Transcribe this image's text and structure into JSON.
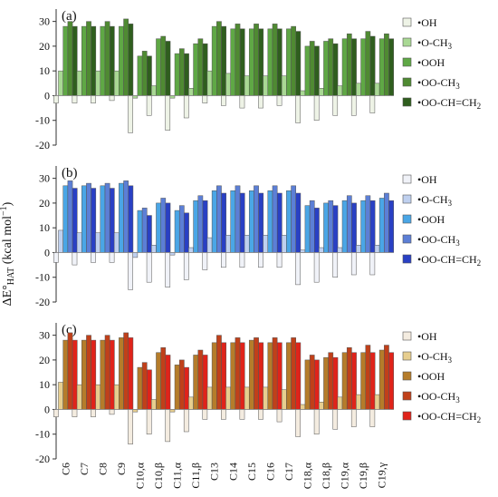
{
  "chart_data": {
    "type": "bar",
    "ylabel": "ΔE°HAT (kcal mol⁻¹)",
    "ylim": [
      -20,
      35
    ],
    "yticks": [
      -20,
      -10,
      0,
      10,
      20,
      30
    ],
    "categories": [
      "C6",
      "C7",
      "C8",
      "C9",
      "C10,α",
      "C10,β",
      "C11,α",
      "C11,β",
      "C13",
      "C14",
      "C15",
      "C16",
      "C17",
      "C18,α",
      "C18,β",
      "C19,α",
      "C19,β",
      "C19,γ"
    ],
    "legend_placement": "right",
    "series_names": [
      "•OH",
      "•O-CH3",
      "•OOH",
      "•OO-CH3",
      "•OO-CH=CH2"
    ],
    "panels": [
      {
        "label": "(a)",
        "colors": [
          "#eef3e6",
          "#a9d894",
          "#5fa845",
          "#4f8a32",
          "#2f5e1e"
        ],
        "series": [
          {
            "name": "•OH",
            "values": [
              -3,
              -3,
              -3,
              -2,
              -15,
              -8,
              -14,
              -9,
              -3,
              -4,
              -5,
              -5,
              -4,
              -11,
              -10,
              -8,
              -8,
              -7
            ]
          },
          {
            "name": "•O-CH3",
            "values": [
              10,
              10,
              10,
              10,
              -1,
              4,
              -1,
              3,
              10,
              9,
              8,
              8,
              8,
              2,
              3,
              4,
              5,
              5
            ]
          },
          {
            "name": "•OOH",
            "values": [
              28,
              28,
              28,
              28,
              16,
              23,
              17,
              21,
              28,
              27,
              27,
              27,
              27,
              20,
              22,
              23,
              23,
              23
            ]
          },
          {
            "name": "•OO-CH3",
            "values": [
              30,
              30,
              30,
              31,
              18,
              24,
              19,
              23,
              30,
              29,
              29,
              29,
              28,
              22,
              23,
              25,
              26,
              25
            ]
          },
          {
            "name": "•OO-CH=CH2",
            "values": [
              28,
              28,
              28,
              29,
              16,
              22,
              17,
              21,
              28,
              27,
              27,
              27,
              26,
              20,
              21,
              23,
              24,
              23
            ]
          }
        ]
      },
      {
        "label": "(b)",
        "colors": [
          "#f0f2f8",
          "#bfd0ef",
          "#4aa6e6",
          "#5c7fd6",
          "#2940c4"
        ],
        "series": [
          {
            "name": "•OH",
            "values": [
              -4,
              -5,
              -4,
              -4,
              -15,
              -12,
              -14,
              -11,
              -7,
              -6,
              -6,
              -6,
              -6,
              -13,
              -12,
              -10,
              -9,
              -9
            ]
          },
          {
            "name": "•O-CH3",
            "values": [
              9,
              8,
              8,
              8,
              -2,
              3,
              -1,
              2,
              6,
              7,
              7,
              7,
              7,
              1,
              2,
              2,
              3,
              3
            ]
          },
          {
            "name": "•OOH",
            "values": [
              27,
              27,
              27,
              28,
              17,
              20,
              17,
              21,
              25,
              25,
              25,
              25,
              25,
              19,
              20,
              21,
              21,
              22
            ]
          },
          {
            "name": "•OO-CH3",
            "values": [
              29,
              28,
              28,
              29,
              18,
              22,
              19,
              23,
              27,
              27,
              27,
              27,
              27,
              21,
              21,
              23,
              23,
              24
            ]
          },
          {
            "name": "•OO-CH=CH2",
            "values": [
              26,
              26,
              26,
              27,
              15,
              20,
              16,
              21,
              24,
              24,
              24,
              24,
              24,
              18,
              19,
              20,
              21,
              21
            ]
          }
        ]
      },
      {
        "label": "(c)",
        "colors": [
          "#f4ece0",
          "#e7ce8f",
          "#b57c2a",
          "#c0401a",
          "#e0231a"
        ],
        "series": [
          {
            "name": "•OH",
            "values": [
              -3,
              -3,
              -3,
              -2,
              -14,
              -10,
              -13,
              -9,
              -4,
              -4,
              -4,
              -4,
              -5,
              -11,
              -10,
              -8,
              -7,
              -7
            ]
          },
          {
            "name": "•O-CH3",
            "values": [
              11,
              10,
              10,
              10,
              -1,
              4,
              -1,
              5,
              9,
              9,
              9,
              9,
              8,
              2,
              3,
              5,
              6,
              6
            ]
          },
          {
            "name": "•OOH",
            "values": [
              28,
              28,
              28,
              29,
              17,
              23,
              18,
              22,
              27,
              27,
              28,
              27,
              27,
              20,
              21,
              23,
              23,
              24
            ]
          },
          {
            "name": "•OO-CH3",
            "values": [
              31,
              30,
              30,
              31,
              19,
              25,
              20,
              24,
              30,
              29,
              29,
              29,
              29,
              22,
              23,
              25,
              26,
              26
            ]
          },
          {
            "name": "•OO-CH=CH2",
            "values": [
              28,
              28,
              28,
              29,
              16,
              22,
              17,
              22,
              27,
              27,
              27,
              27,
              27,
              20,
              21,
              23,
              23,
              23
            ]
          }
        ]
      }
    ]
  }
}
